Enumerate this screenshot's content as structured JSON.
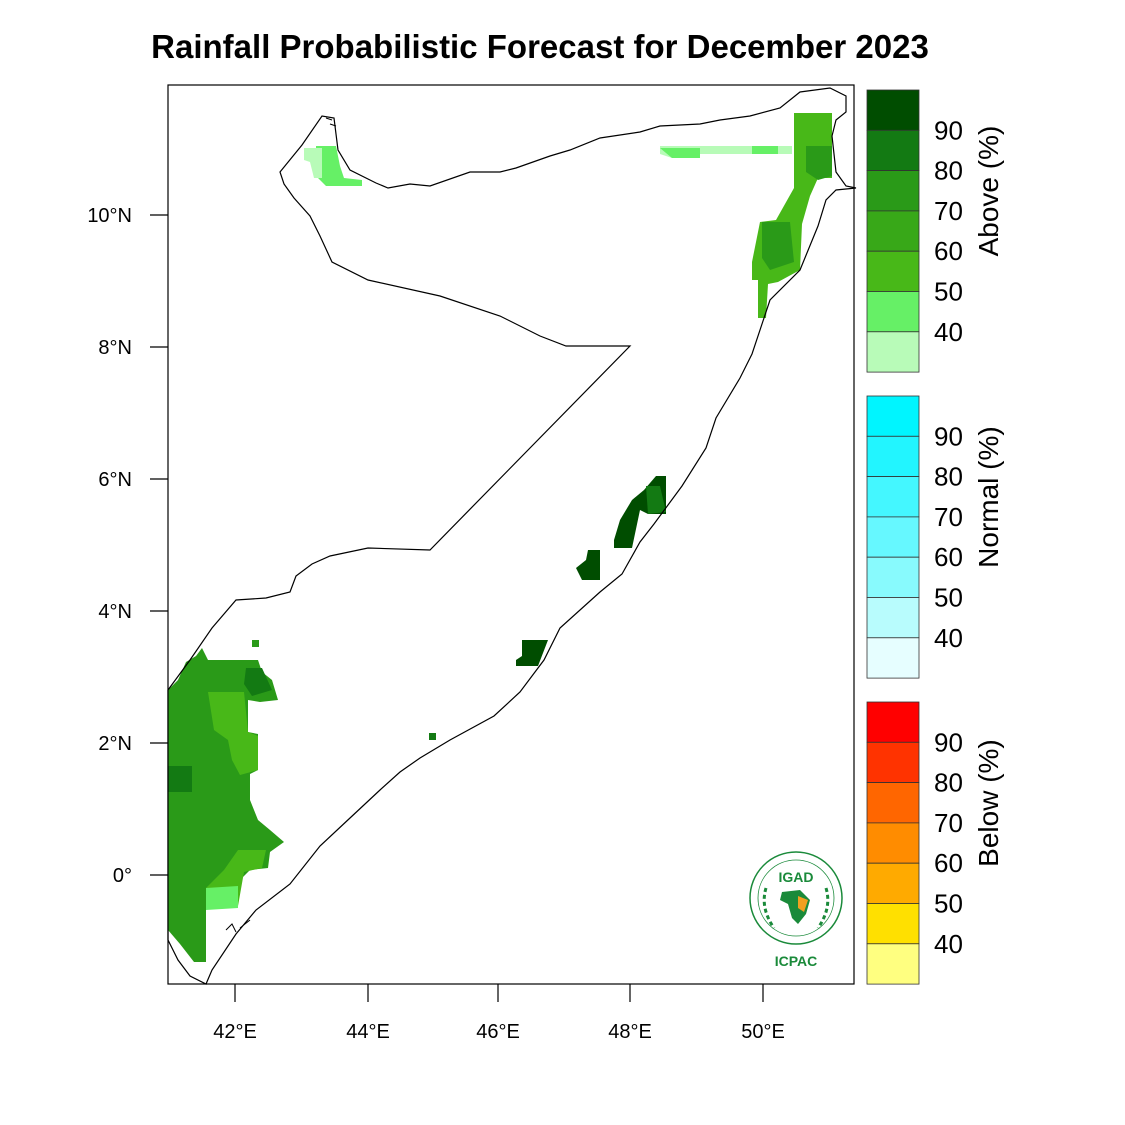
{
  "title": "Rainfall Probabilistic Forecast for December 2023",
  "axes": {
    "x_ticks": [
      "42°E",
      "44°E",
      "46°E",
      "48°E",
      "50°E"
    ],
    "y_ticks": [
      "10°N",
      "8°N",
      "6°N",
      "4°N",
      "2°N",
      "0°"
    ]
  },
  "legends": [
    {
      "title": "Above (%)",
      "labels": [
        "90",
        "80",
        "70",
        "60",
        "50",
        "40"
      ],
      "colors": [
        "#004d00",
        "#137a13",
        "#2a9a18",
        "#38a818",
        "#48b818",
        "#66f066",
        "#b8fbb8"
      ]
    },
    {
      "title": "Normal (%)",
      "labels": [
        "90",
        "80",
        "70",
        "60",
        "50",
        "40"
      ],
      "colors": [
        "#00f5ff",
        "#22f5ff",
        "#44f7ff",
        "#66f8ff",
        "#88fafd",
        "#b8fcfd",
        "#e6feff"
      ]
    },
    {
      "title": "Below (%)",
      "labels": [
        "90",
        "80",
        "70",
        "60",
        "50",
        "40"
      ],
      "colors": [
        "#ff0000",
        "#ff3300",
        "#ff6600",
        "#ff8c00",
        "#ffaa00",
        "#ffe000",
        "#ffff80"
      ]
    }
  ],
  "logo": {
    "top": "IGAD",
    "bottom": "ICPAC"
  },
  "colors": {
    "coast": "#000000",
    "frame": "#000000"
  }
}
